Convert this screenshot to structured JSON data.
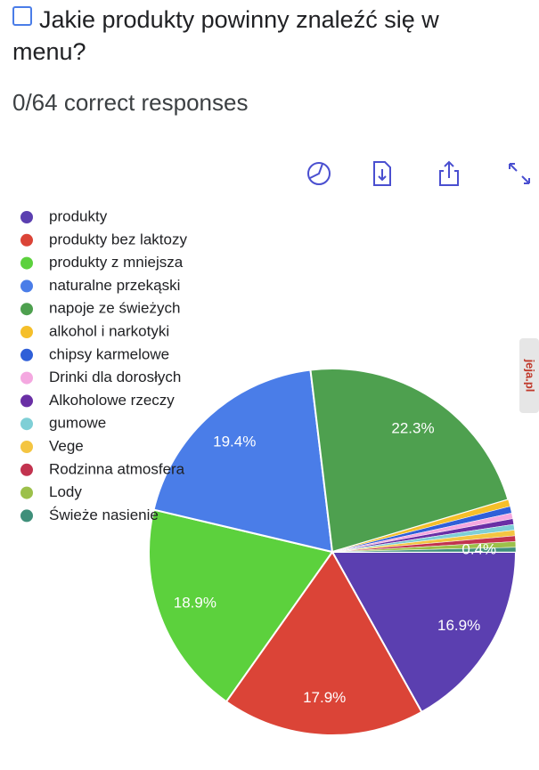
{
  "question": {
    "title": "Jakie produkty powinny znaleźć się w menu?",
    "score": "0/64 correct responses"
  },
  "watermark": "jeja.pl",
  "chart_data": {
    "type": "pie",
    "categories": [
      "produkty",
      "produkty bez laktozy",
      "produkty z mniejsza",
      "naturalne przekąski",
      "napoje ze świeżych",
      "alkohol i narkotyki",
      "chipsy karmelowe",
      "Drinki dla dorosłych",
      "Alkoholowe rzeczy",
      "gumowe",
      "Vege",
      "Rodzinna atmosfera",
      "Lody",
      "Świeże nasienie"
    ],
    "values": [
      16.9,
      17.9,
      18.9,
      19.4,
      22.3,
      0.6,
      0.6,
      0.5,
      0.5,
      0.5,
      0.5,
      0.5,
      0.5,
      0.4
    ],
    "value_labels": [
      "16.9%",
      "17.9%",
      "18.9%",
      "19.4%",
      "22.3%",
      null,
      null,
      null,
      null,
      null,
      null,
      null,
      null,
      "0.4%"
    ],
    "colors": [
      "#5b3fb0",
      "#db4437",
      "#5cd13d",
      "#4a7de8",
      "#4ea04f",
      "#f5bf2a",
      "#2f5fd8",
      "#f4a8e0",
      "#6a2fa5",
      "#7fcfd6",
      "#f4c542",
      "#c2334f",
      "#9cc04a",
      "#3f8f7a"
    ],
    "legend": "top-left"
  }
}
